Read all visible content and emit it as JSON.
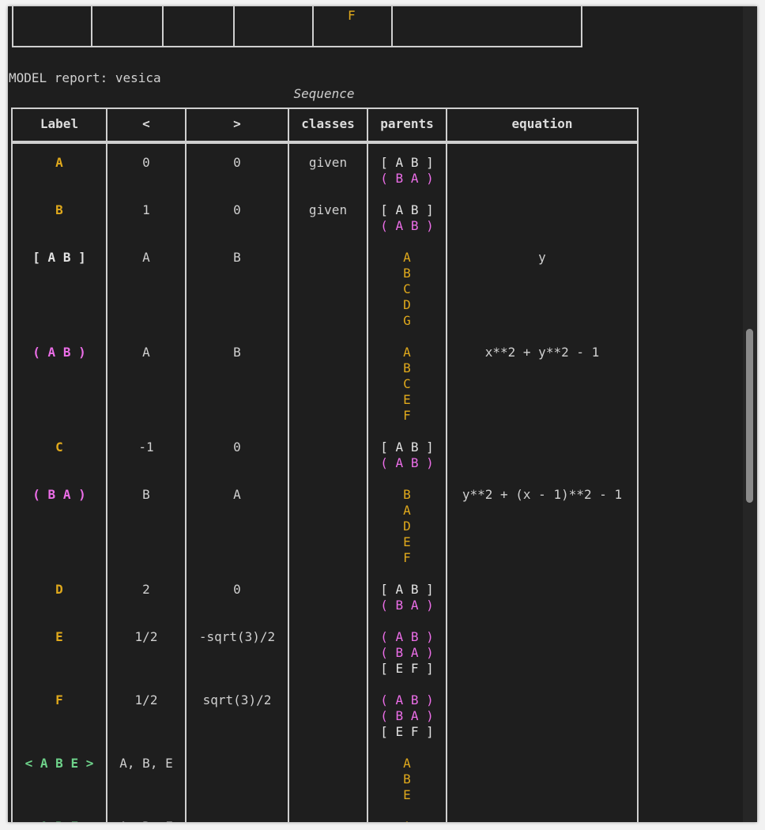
{
  "previous_table": {
    "visible_parent": "F"
  },
  "report": {
    "prefix": "MODEL report: vesica",
    "caption": "Sequence"
  },
  "table": {
    "headers": [
      "Label",
      "<",
      ">",
      "classes",
      "parents",
      "equation"
    ],
    "rows": [
      {
        "label": "A",
        "label_style": "gold",
        "lt": "0",
        "gt": "0",
        "classes": "given",
        "parents": [
          {
            "text": "[ A B ]",
            "style": "white"
          },
          {
            "text": "( B A )",
            "style": "magenta"
          }
        ],
        "equation": ""
      },
      {
        "label": "B",
        "label_style": "gold",
        "lt": "1",
        "gt": "0",
        "classes": "given",
        "parents": [
          {
            "text": "[ A B ]",
            "style": "white"
          },
          {
            "text": "( A B )",
            "style": "magenta"
          }
        ],
        "equation": ""
      },
      {
        "label": "[ A B ]",
        "label_style": "white",
        "lt": "A",
        "gt": "B",
        "classes": "",
        "parents": [
          {
            "text": "A",
            "style": "gold"
          },
          {
            "text": "B",
            "style": "gold"
          },
          {
            "text": "C",
            "style": "gold"
          },
          {
            "text": "D",
            "style": "gold"
          },
          {
            "text": "G",
            "style": "gold"
          }
        ],
        "equation": "y"
      },
      {
        "label": "( A B )",
        "label_style": "magenta",
        "lt": "A",
        "gt": "B",
        "classes": "",
        "parents": [
          {
            "text": "A",
            "style": "gold"
          },
          {
            "text": "B",
            "style": "gold"
          },
          {
            "text": "C",
            "style": "gold"
          },
          {
            "text": "E",
            "style": "gold"
          },
          {
            "text": "F",
            "style": "gold"
          }
        ],
        "equation": "x**2 + y**2 - 1"
      },
      {
        "label": "C",
        "label_style": "gold",
        "lt": "-1",
        "gt": "0",
        "classes": "",
        "parents": [
          {
            "text": "[ A B ]",
            "style": "white"
          },
          {
            "text": "( A B )",
            "style": "magenta"
          }
        ],
        "equation": ""
      },
      {
        "label": "( B A )",
        "label_style": "magenta",
        "lt": "B",
        "gt": "A",
        "classes": "",
        "parents": [
          {
            "text": "B",
            "style": "gold"
          },
          {
            "text": "A",
            "style": "gold"
          },
          {
            "text": "D",
            "style": "gold"
          },
          {
            "text": "E",
            "style": "gold"
          },
          {
            "text": "F",
            "style": "gold"
          }
        ],
        "equation": "y**2 + (x - 1)**2 - 1"
      },
      {
        "label": "D",
        "label_style": "gold",
        "lt": "2",
        "gt": "0",
        "classes": "",
        "parents": [
          {
            "text": "[ A B ]",
            "style": "white"
          },
          {
            "text": "( B A )",
            "style": "magenta"
          }
        ],
        "equation": ""
      },
      {
        "label": "E",
        "label_style": "gold",
        "lt": "1/2",
        "gt": "-sqrt(3)/2",
        "classes": "",
        "parents": [
          {
            "text": "( A B )",
            "style": "magenta"
          },
          {
            "text": "( B A )",
            "style": "magenta"
          },
          {
            "text": "[ E F ]",
            "style": "white"
          }
        ],
        "equation": ""
      },
      {
        "label": "F",
        "label_style": "gold",
        "lt": "1/2",
        "gt": "sqrt(3)/2",
        "classes": "",
        "parents": [
          {
            "text": "( A B )",
            "style": "magenta"
          },
          {
            "text": "( B A )",
            "style": "magenta"
          },
          {
            "text": "[ E F ]",
            "style": "white"
          }
        ],
        "equation": ""
      },
      {
        "label": "< A B E >",
        "label_style": "green",
        "lt": "A, B, E",
        "gt": "",
        "classes": "",
        "parents": [
          {
            "text": "A",
            "style": "gold"
          },
          {
            "text": "B",
            "style": "gold"
          },
          {
            "text": "E",
            "style": "gold"
          }
        ],
        "equation": ""
      },
      {
        "label": "< A B F >",
        "label_style": "green",
        "lt": "A, B, F",
        "gt": "",
        "classes": "",
        "parents": [
          {
            "text": "A",
            "style": "gold"
          }
        ],
        "equation": ""
      }
    ]
  }
}
